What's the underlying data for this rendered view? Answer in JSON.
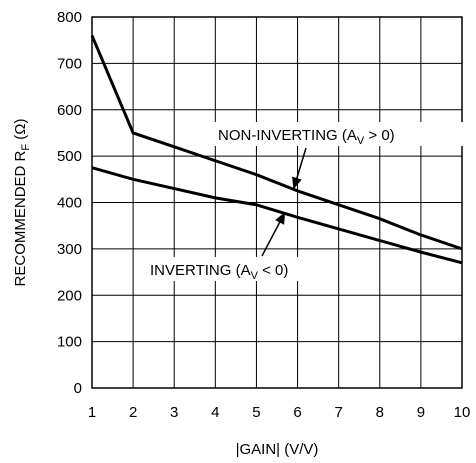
{
  "chart_data": {
    "type": "line",
    "xlabel": "|GAIN| (V/V)",
    "ylabel": {
      "prefix": "RECOMMENDED R",
      "subscript": "F",
      "suffix": " (Ω)"
    },
    "xlim": [
      1,
      10
    ],
    "ylim": [
      0,
      800
    ],
    "xticks": [
      1,
      2,
      3,
      4,
      5,
      6,
      7,
      8,
      9,
      10
    ],
    "yticks": [
      0,
      100,
      200,
      300,
      400,
      500,
      600,
      700,
      800
    ],
    "grid": true,
    "series": [
      {
        "id": "non-inverting",
        "label": {
          "prefix": "NON-INVERTING (A",
          "subscript": "V",
          "suffix": " > 0)"
        },
        "x": [
          1,
          2,
          3,
          4,
          5,
          6,
          7,
          8,
          9,
          10
        ],
        "y": [
          760,
          550,
          520,
          490,
          460,
          425,
          395,
          365,
          330,
          300
        ]
      },
      {
        "id": "inverting",
        "label": {
          "prefix": "INVERTING (A",
          "subscript": "V",
          "suffix": " < 0)"
        },
        "x": [
          1,
          2,
          3,
          4,
          5,
          6,
          7,
          8,
          9,
          10
        ],
        "y": [
          475,
          450,
          430,
          410,
          395,
          368,
          343,
          318,
          293,
          270
        ]
      }
    ]
  }
}
